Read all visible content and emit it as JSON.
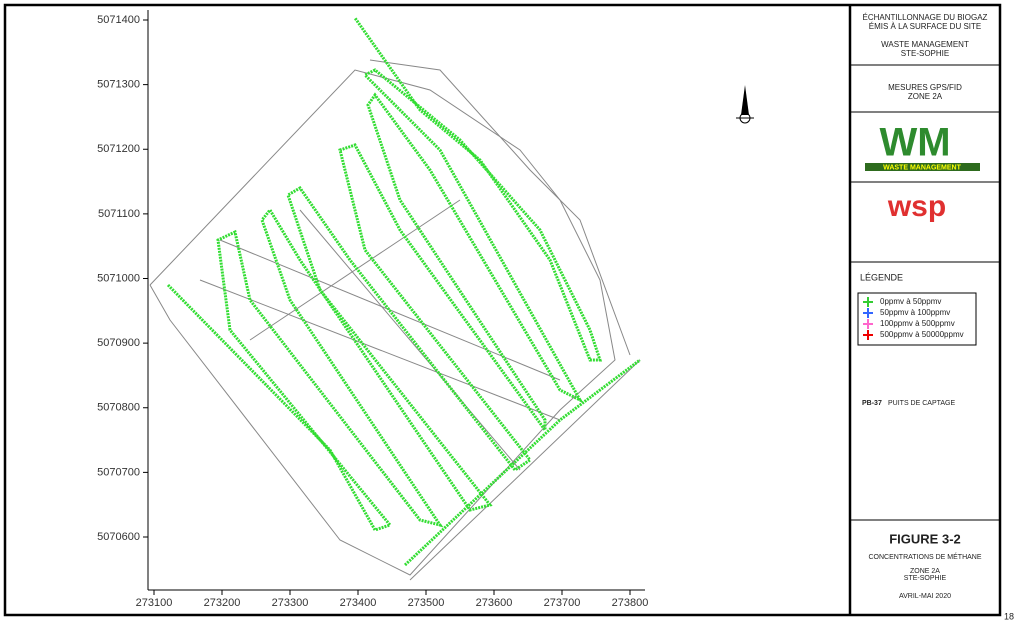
{
  "map": {
    "xticks": [
      273100,
      273200,
      273300,
      273400,
      273500,
      273600,
      273700,
      273800
    ],
    "yticks": [
      5070600,
      5070700,
      5070800,
      5070900,
      5071000,
      5071100,
      5071200,
      5071300,
      5071400
    ],
    "page_number": "18"
  },
  "title_block": {
    "study": [
      "ÉCHANTILLONNAGE DU BIOGAZ",
      "ÉMIS À LA SURFACE DU SITE"
    ],
    "client": [
      "WASTE MANAGEMENT",
      "STE-SOPHIE"
    ],
    "subject": [
      "MESURES GPS/FID",
      "ZONE 2A"
    ],
    "logo_wm": "WM",
    "logo_wm_text": "WASTE MANAGEMENT",
    "logo_wsp": "wsp",
    "legend_title": "LÉGENDE",
    "legend": [
      {
        "label": "0ppmv  à  50ppmv",
        "color": "#33cc33"
      },
      {
        "label": "50ppmv  à  100ppmv",
        "color": "#3366ff"
      },
      {
        "label": "100ppmv  à  500ppmv",
        "color": "#ff66cc"
      },
      {
        "label": "500ppmv  à  50000ppmv",
        "color": "#ee0000"
      }
    ],
    "well_code": "PB-37",
    "well_label": "PUITS DE CAPTAGE",
    "figure": "FIGURE 3-2",
    "figure_title": "CONCENTRATIONS DE MÉTHANE",
    "zone": "ZONE 2A",
    "site": "STE-SOPHIE",
    "date": "AVRIL-MAI 2020"
  }
}
